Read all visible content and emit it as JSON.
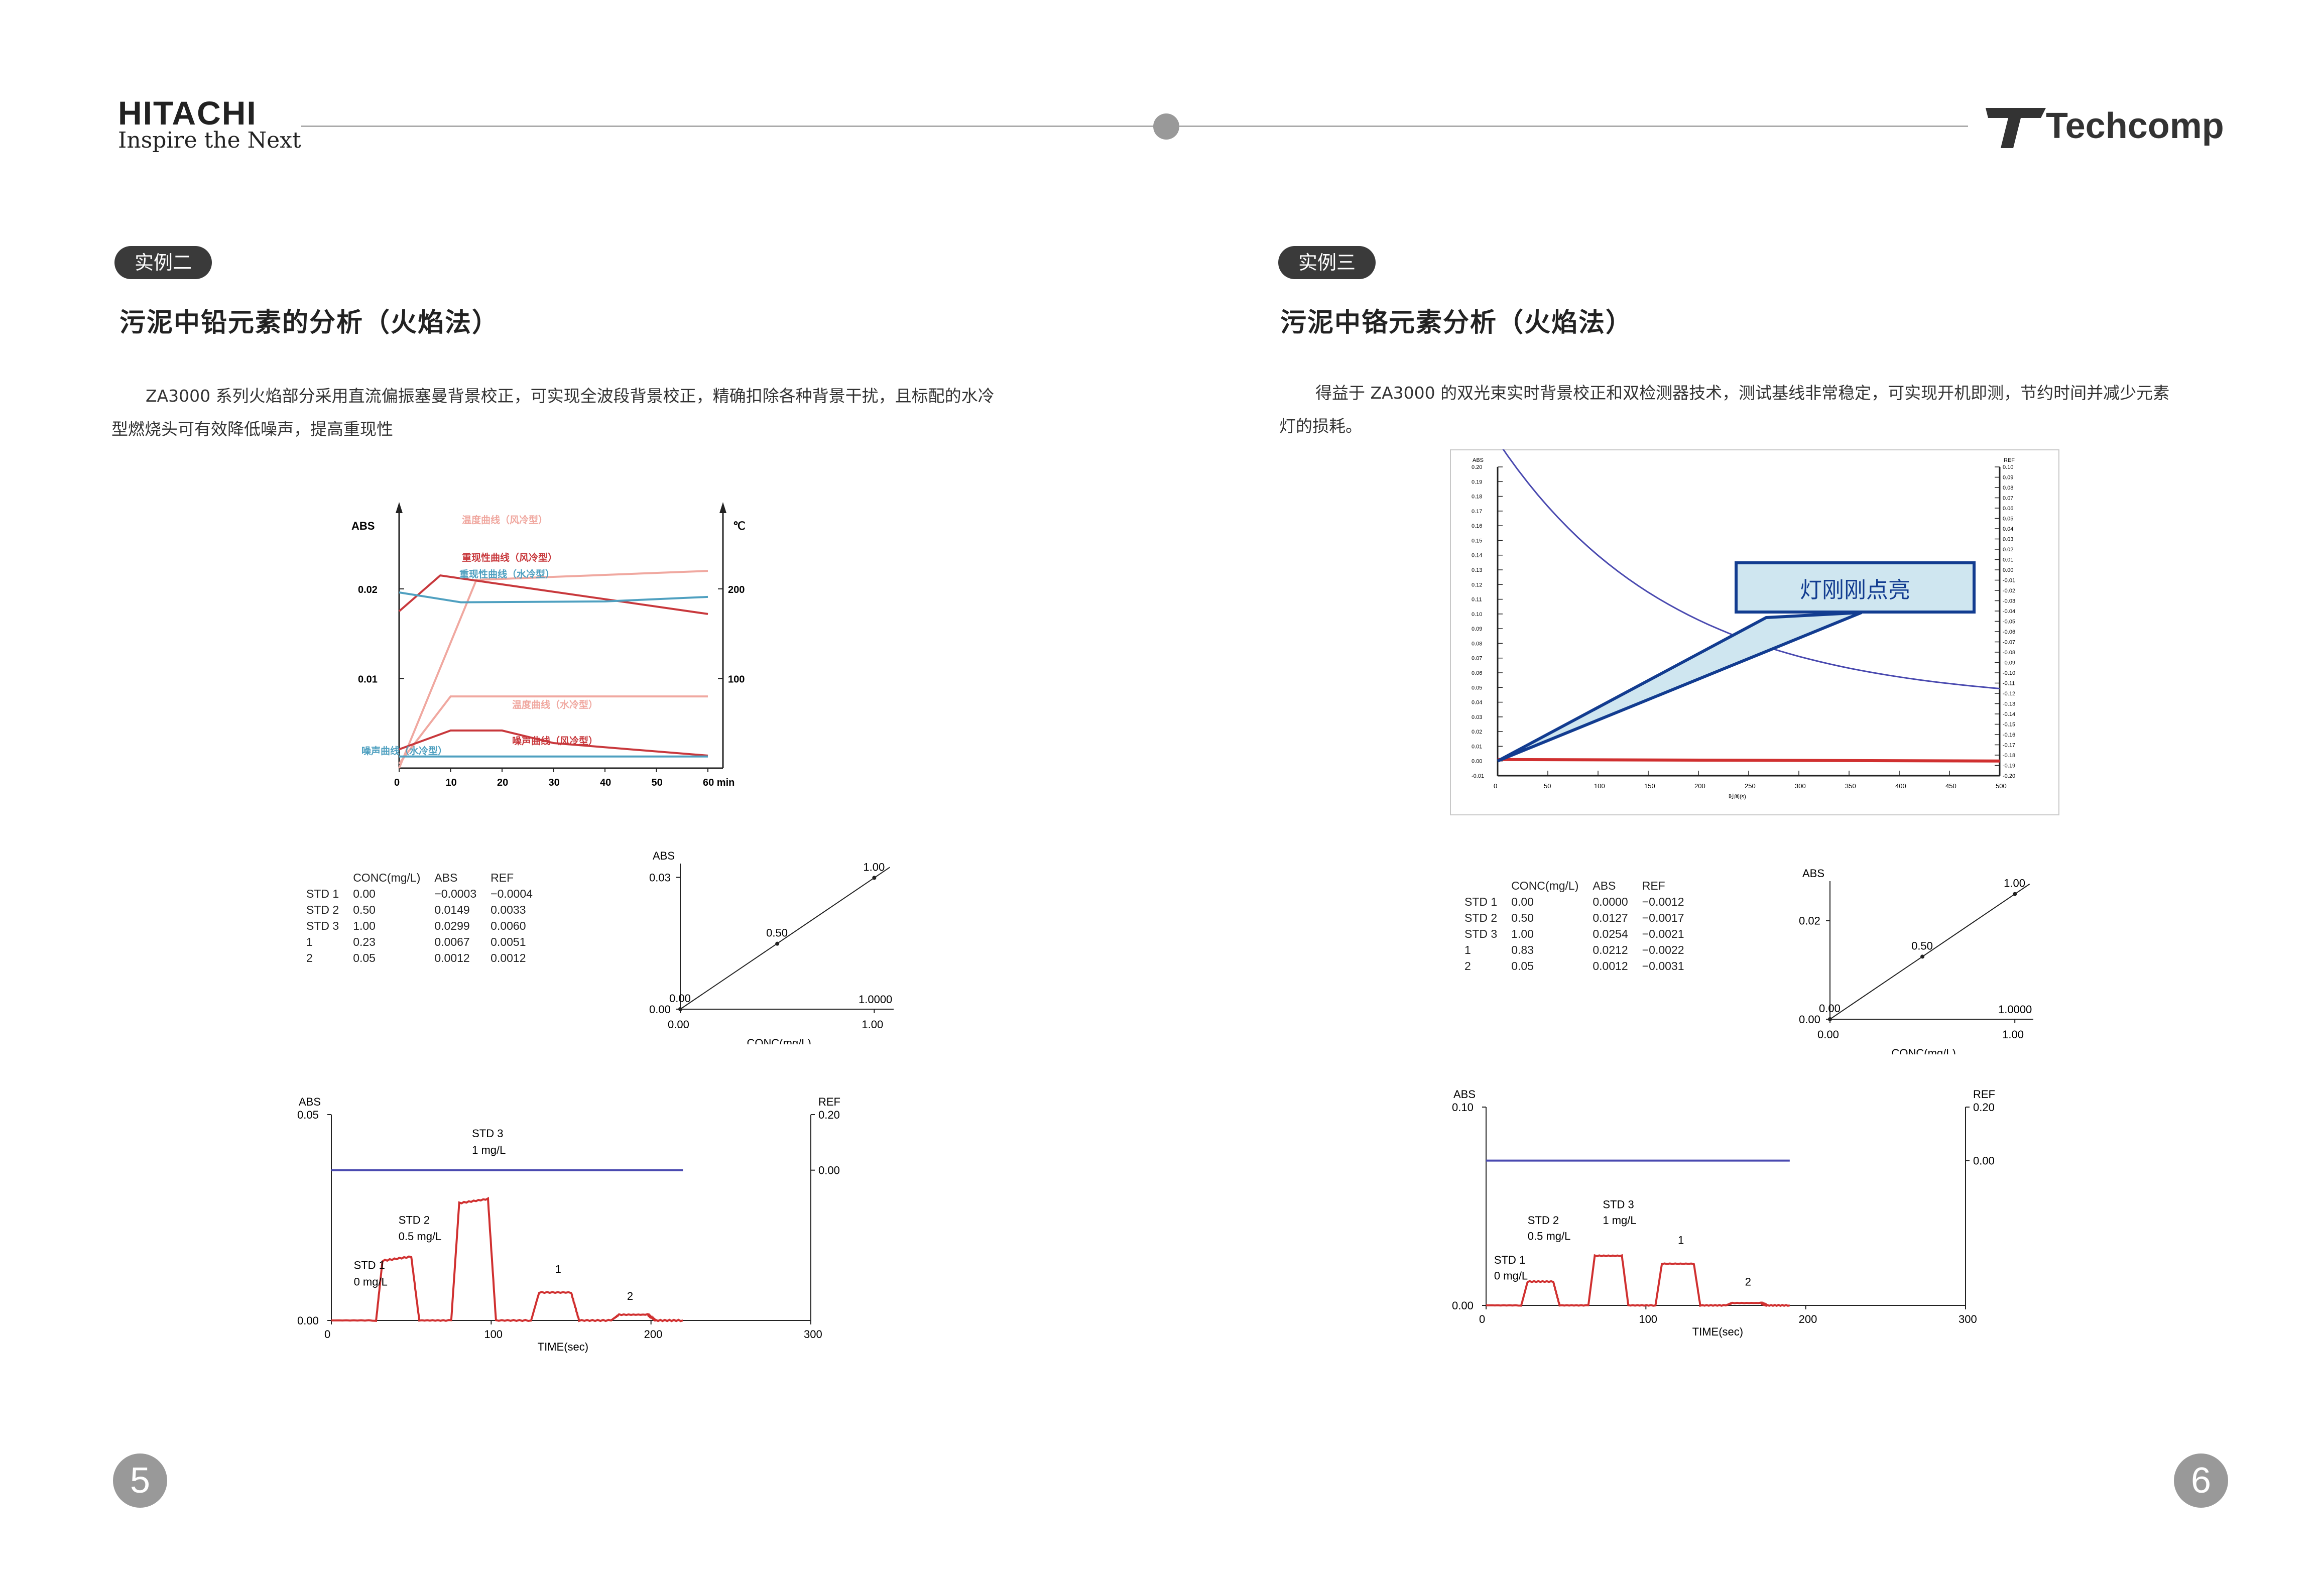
{
  "header": {
    "hitachi_logo": "HITACHI",
    "hitachi_slogan": "Inspire the Next",
    "techcomp_logo": "Techcomp"
  },
  "left": {
    "badge": "实例二",
    "title": "污泥中铅元素的分析（火焰法）",
    "paragraph_line1": "ZA3000 系列火焰部分采用直流偏振塞曼背景校正，可实现全波段背景校正，精确扣除各种背景干扰，且标配的水冷",
    "paragraph_line2": "型燃烧头可有效降低噪声，提高重现性",
    "page_number": "5",
    "table": {
      "headers": [
        "",
        "CONC(mg/L)",
        "ABS",
        "REF"
      ],
      "rows": [
        [
          "STD 1",
          "0.00",
          "−0.0003",
          "−0.0004"
        ],
        [
          "STD 2",
          "0.50",
          "0.0149",
          "0.0033"
        ],
        [
          "STD 3",
          "1.00",
          "0.0299",
          "0.0060"
        ],
        [
          "1",
          "0.23",
          "0.0067",
          "0.0051"
        ],
        [
          "2",
          "0.05",
          "0.0012",
          "0.0012"
        ]
      ]
    }
  },
  "right": {
    "badge": "实例三",
    "title": "污泥中铬元素分析（火焰法）",
    "paragraph_line1": "得益于 ZA3000 的双光束实时背景校正和双检测器技术，测试基线非常稳定，可实现开机即测，节约时间并减少元素",
    "paragraph_line2": "灯的损耗。",
    "page_number": "6",
    "callout": "灯刚刚点亮",
    "table": {
      "headers": [
        "",
        "CONC(mg/L)",
        "ABS",
        "REF"
      ],
      "rows": [
        [
          "STD 1",
          "0.00",
          "0.0000",
          "−0.0012"
        ],
        [
          "STD 2",
          "0.50",
          "0.0127",
          "−0.0017"
        ],
        [
          "STD 3",
          "1.00",
          "0.0254",
          "−0.0021"
        ],
        [
          "1",
          "0.83",
          "0.0212",
          "−0.0022"
        ],
        [
          "2",
          "0.05",
          "0.0012",
          "−0.0031"
        ]
      ]
    }
  },
  "chart_data": [
    {
      "id": "lead-drift",
      "type": "line",
      "ylabel": "ABS",
      "y2label": "℃",
      "x_ticks": [
        "0",
        "10",
        "20",
        "30",
        "40",
        "50",
        "60 min"
      ],
      "y_ticks": [
        "0.01",
        "0.02"
      ],
      "y2_ticks": [
        "100",
        "200"
      ],
      "xlim": [
        0,
        60
      ],
      "ylim": [
        0,
        0.028
      ],
      "y2lim": [
        0,
        280
      ],
      "series": [
        {
          "name": "温度曲线（风冷型）",
          "axis": "y2",
          "color": "#f0a8a0",
          "x": [
            0,
            15,
            60
          ],
          "y": [
            0,
            210,
            220
          ]
        },
        {
          "name": "重现性曲线（风冷型）",
          "axis": "y",
          "color": "#c8383c",
          "x": [
            0,
            8,
            20,
            60
          ],
          "y": [
            0.0175,
            0.0215,
            0.0205,
            0.0172
          ]
        },
        {
          "name": "重现性曲线（水冷型）",
          "axis": "y",
          "color": "#4fa0c0",
          "x": [
            0,
            12,
            40,
            60
          ],
          "y": [
            0.0196,
            0.0185,
            0.0186,
            0.0191
          ]
        },
        {
          "name": "温度曲线（水冷型）",
          "axis": "y2",
          "color": "#f0a8a0",
          "x": [
            0,
            10,
            60
          ],
          "y": [
            5,
            80,
            80
          ]
        },
        {
          "name": "噪声曲线（风冷型）",
          "axis": "y",
          "color": "#c8383c",
          "x": [
            0,
            10,
            20,
            30,
            60
          ],
          "y": [
            0.0021,
            0.0042,
            0.0042,
            0.0028,
            0.0014
          ]
        },
        {
          "name": "噪声曲线（水冷型）",
          "axis": "y",
          "color": "#4fa0c0",
          "x": [
            0,
            60
          ],
          "y": [
            0.0013,
            0.0013
          ]
        }
      ]
    },
    {
      "id": "lead-calibration",
      "type": "line",
      "ylabel": "ABS",
      "xlabel": "CONC(mg/L)",
      "xlim": [
        0,
        1.1
      ],
      "ylim": [
        0,
        0.032
      ],
      "x_ticks": [
        "0.00",
        "1.00"
      ],
      "y_ticks": [
        "0.00",
        "0.03"
      ],
      "points": [
        {
          "x": 0.0,
          "y": 0.0,
          "label": "0.00"
        },
        {
          "x": 0.5,
          "y": 0.0149,
          "label": "0.50"
        },
        {
          "x": 1.0,
          "y": 0.0299,
          "label": "1.00"
        }
      ],
      "annotation": "1.0000"
    },
    {
      "id": "lead-time",
      "type": "line",
      "ylabel": "ABS",
      "y2label": "REF",
      "xlabel": "TIME(sec)",
      "xlim": [
        0,
        300
      ],
      "ylim": [
        0,
        0.05
      ],
      "y2lim": [
        0.0,
        0.2
      ],
      "x_ticks": [
        "0",
        "100",
        "200",
        "300"
      ],
      "y_ticks": [
        "0.00",
        "0.05"
      ],
      "y2_ticks": [
        "0.00",
        "0.20"
      ],
      "peak_labels": [
        {
          "text": "STD 1",
          "x": 14,
          "y": 0.0125
        },
        {
          "text": "0 mg/L",
          "x": 14,
          "y": 0.0085
        },
        {
          "text": "STD 2",
          "x": 42,
          "y": 0.0235
        },
        {
          "text": "0.5 mg/L",
          "x": 42,
          "y": 0.0195
        },
        {
          "text": "STD 3",
          "x": 88,
          "y": 0.0445
        },
        {
          "text": "1 mg/L",
          "x": 88,
          "y": 0.0405
        },
        {
          "text": "1",
          "x": 140,
          "y": 0.0115
        },
        {
          "text": "2",
          "x": 185,
          "y": 0.005
        }
      ],
      "series": [
        {
          "name": "REF",
          "axis": "y2",
          "color": "#4a4ab0",
          "x": [
            0,
            220
          ],
          "y": [
            0.002,
            0.002
          ]
        },
        {
          "name": "ABS",
          "axis": "y",
          "color": "#d03030",
          "x": [
            0,
            28,
            32,
            50,
            55,
            75,
            80,
            98,
            103,
            125,
            130,
            150,
            155,
            175,
            180,
            198,
            203,
            220
          ],
          "y": [
            0.0,
            0.0,
            0.0145,
            0.0155,
            0.0,
            0.0,
            0.0285,
            0.0295,
            0.0,
            0.0,
            0.0068,
            0.0068,
            0.0,
            0.0,
            0.0014,
            0.0014,
            0.0,
            0.0
          ]
        }
      ]
    },
    {
      "id": "chromium-baseline",
      "type": "line",
      "xlabel": "时间(s)",
      "ylabel": "ABS",
      "y2label": "REF",
      "xlim": [
        0,
        500
      ],
      "ylim": [
        -0.01,
        0.2
      ],
      "y2lim": [
        -0.2,
        0.1
      ],
      "x_ticks": [
        "0",
        "50",
        "100",
        "150",
        "200",
        "250",
        "300",
        "350",
        "400",
        "450",
        "500"
      ],
      "series": [
        {
          "name": "ABS",
          "axis": "y",
          "color": "#d03030",
          "x": [
            0,
            500
          ],
          "y": [
            0.001,
            0.0
          ]
        },
        {
          "name": "REF",
          "axis": "y2",
          "color": "#4a4ab0",
          "x": [
            0,
            500
          ],
          "y": [
            0.0,
            -0.13
          ]
        }
      ]
    },
    {
      "id": "chromium-calibration",
      "type": "line",
      "ylabel": "ABS",
      "xlabel": "CONC(mg/L)",
      "xlim": [
        0,
        1.1
      ],
      "ylim": [
        0,
        0.027
      ],
      "x_ticks": [
        "0.00",
        "1.00"
      ],
      "y_ticks": [
        "0.00",
        "0.02"
      ],
      "points": [
        {
          "x": 0.0,
          "y": 0.0,
          "label": "0.00"
        },
        {
          "x": 0.5,
          "y": 0.0127,
          "label": "0.50"
        },
        {
          "x": 1.0,
          "y": 0.0254,
          "label": "1.00"
        }
      ],
      "annotation": "1.0000"
    },
    {
      "id": "chromium-time",
      "type": "line",
      "ylabel": "ABS",
      "y2label": "REF",
      "xlabel": "TIME(sec)",
      "xlim": [
        0,
        300
      ],
      "ylim": [
        0,
        0.1
      ],
      "y2lim": [
        0.0,
        0.2
      ],
      "x_ticks": [
        "0",
        "100",
        "200",
        "300"
      ],
      "y_ticks": [
        "0.00",
        "0.10"
      ],
      "y2_ticks": [
        "0.00",
        "0.20"
      ],
      "peak_labels": [
        {
          "text": "STD 1",
          "x": 5,
          "y": 0.021
        },
        {
          "text": "0 mg/L",
          "x": 5,
          "y": 0.013
        },
        {
          "text": "STD 2",
          "x": 26,
          "y": 0.041
        },
        {
          "text": "0.5 mg/L",
          "x": 26,
          "y": 0.033
        },
        {
          "text": "STD 3",
          "x": 73,
          "y": 0.049
        },
        {
          "text": "1 mg/L",
          "x": 73,
          "y": 0.041
        },
        {
          "text": "1",
          "x": 120,
          "y": 0.031
        },
        {
          "text": "2",
          "x": 162,
          "y": 0.01
        }
      ],
      "series": [
        {
          "name": "REF",
          "axis": "y2",
          "color": "#4a4ab0",
          "x": [
            0,
            190
          ],
          "y": [
            0.002,
            0.002
          ]
        },
        {
          "name": "ABS",
          "axis": "y",
          "color": "#d03030",
          "x": [
            0,
            22,
            26,
            42,
            46,
            64,
            68,
            85,
            89,
            106,
            110,
            130,
            134,
            150,
            154,
            172,
            176,
            190
          ],
          "y": [
            0.0,
            0.0,
            0.012,
            0.012,
            0.0,
            0.0,
            0.025,
            0.025,
            0.0,
            0.0,
            0.021,
            0.021,
            0.0,
            0.0,
            0.0012,
            0.0012,
            0.0,
            0.0
          ]
        }
      ]
    }
  ]
}
